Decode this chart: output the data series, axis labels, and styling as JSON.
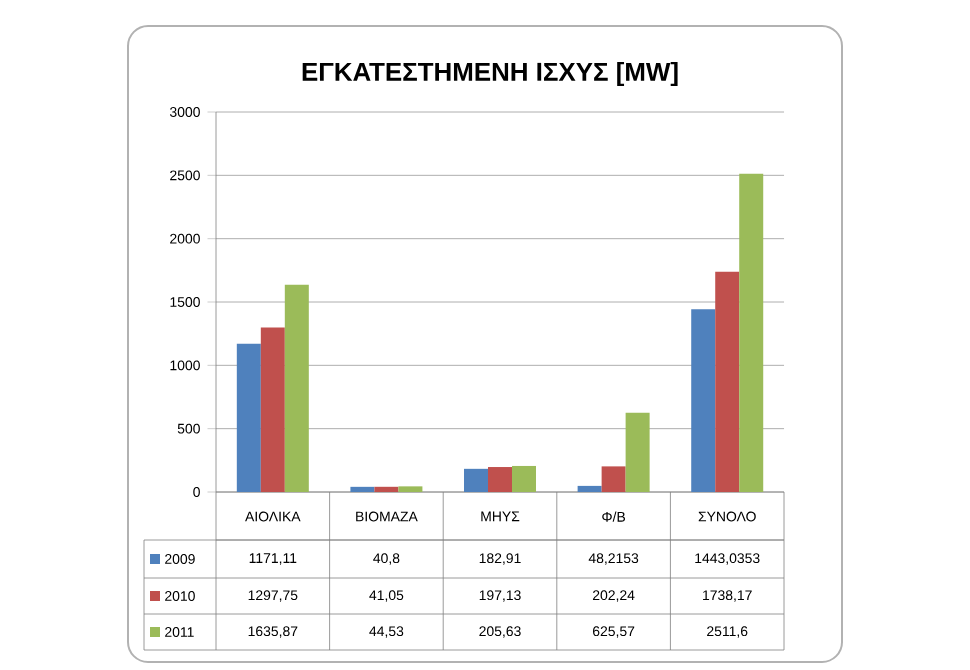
{
  "chart_data": {
    "type": "bar",
    "title": "ΕΓΚΑΤΕΣΤΗΜΕΝΗ ΙΣΧΥΣ [MW]",
    "categories": [
      "ΑΙΟΛΙΚΑ",
      "ΒΙΟΜΑΖΑ",
      "ΜΗΥΣ",
      "Φ/Β",
      "ΣΥΝΟΛΟ"
    ],
    "series": [
      {
        "name": "2009",
        "color": "#4f81bd",
        "values": [
          1171.11,
          40.8,
          182.91,
          48.2153,
          1443.0353
        ],
        "value_labels": [
          "1171,11",
          "40,8",
          "182,91",
          "48,2153",
          "1443,0353"
        ]
      },
      {
        "name": "2010",
        "color": "#c0504d",
        "values": [
          1297.75,
          41.05,
          197.13,
          202.24,
          1738.17
        ],
        "value_labels": [
          "1297,75",
          "41,05",
          "197,13",
          "202,24",
          "1738,17"
        ]
      },
      {
        "name": "2011",
        "color": "#9bbb59",
        "values": [
          1635.87,
          44.53,
          205.63,
          625.57,
          2511.6
        ],
        "value_labels": [
          "1635,87",
          "44,53",
          "205,63",
          "625,57",
          "2511,6"
        ]
      }
    ],
    "ylim": [
      0,
      3000
    ],
    "yticks": [
      0,
      500,
      1000,
      1500,
      2000,
      2500,
      3000
    ],
    "grid": "y",
    "legend": "bottom"
  }
}
